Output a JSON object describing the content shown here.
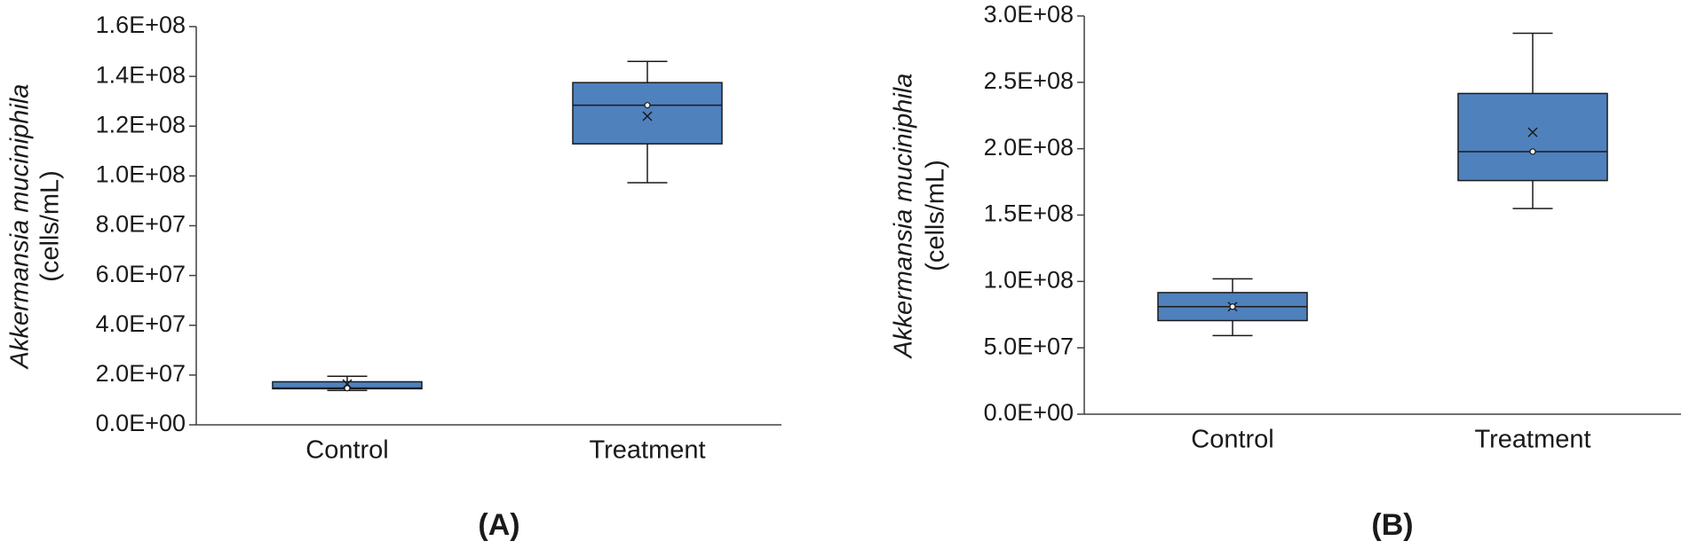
{
  "chart_data": [
    {
      "type": "box",
      "ylabel": "Akkermansia muciniphila",
      "ylabel_unit": "(cells/mL)",
      "caption": "(A)",
      "color": "#4f81bd",
      "categories": [
        "Control",
        "Treatment"
      ],
      "boxes": [
        {
          "whisker_low": 13800000,
          "q1": 14500000,
          "median": 14800000,
          "q3": 17300000,
          "whisker_high": 19500000,
          "mean": 16400000,
          "points": [
            14700000
          ]
        },
        {
          "whisker_low": 97300000,
          "q1": 112900000,
          "median": 128400000,
          "q3": 137500000,
          "whisker_high": 146000000,
          "mean": 124000000,
          "points": [
            128400000
          ]
        }
      ],
      "ylim": [
        0,
        160000000
      ],
      "yticks": [
        {
          "value": 0,
          "label": "0.0E+00"
        },
        {
          "value": 20000000,
          "label": "2.0E+07"
        },
        {
          "value": 40000000,
          "label": "4.0E+07"
        },
        {
          "value": 60000000,
          "label": "6.0E+07"
        },
        {
          "value": 80000000,
          "label": "8.0E+07"
        },
        {
          "value": 100000000,
          "label": "1.0E+08"
        },
        {
          "value": 120000000,
          "label": "1.2E+08"
        },
        {
          "value": 140000000,
          "label": "1.4E+08"
        },
        {
          "value": 160000000,
          "label": "1.6E+08"
        }
      ]
    },
    {
      "type": "box",
      "ylabel": "Akkermansia muciniphila",
      "ylabel_unit": "(cells/mL)",
      "caption": "(B)",
      "color": "#4f81bd",
      "categories": [
        "Control",
        "Treatment"
      ],
      "boxes": [
        {
          "whisker_low": 59200000,
          "q1": 70500000,
          "median": 81000000,
          "q3": 91600000,
          "whisker_high": 102000000,
          "mean": 81000000,
          "points": [
            81000000
          ]
        },
        {
          "whisker_low": 154900000,
          "q1": 176000000,
          "median": 197800000,
          "q3": 241600000,
          "whisker_high": 287000000,
          "mean": 212400000,
          "points": [
            197800000
          ]
        }
      ],
      "ylim": [
        0,
        300000000
      ],
      "yticks": [
        {
          "value": 0,
          "label": "0.0E+00"
        },
        {
          "value": 50000000,
          "label": "5.0E+07"
        },
        {
          "value": 100000000,
          "label": "1.0E+08"
        },
        {
          "value": 150000000,
          "label": "1.5E+08"
        },
        {
          "value": 200000000,
          "label": "2.0E+08"
        },
        {
          "value": 250000000,
          "label": "2.5E+08"
        },
        {
          "value": 300000000,
          "label": "3.0E+08"
        }
      ]
    }
  ]
}
